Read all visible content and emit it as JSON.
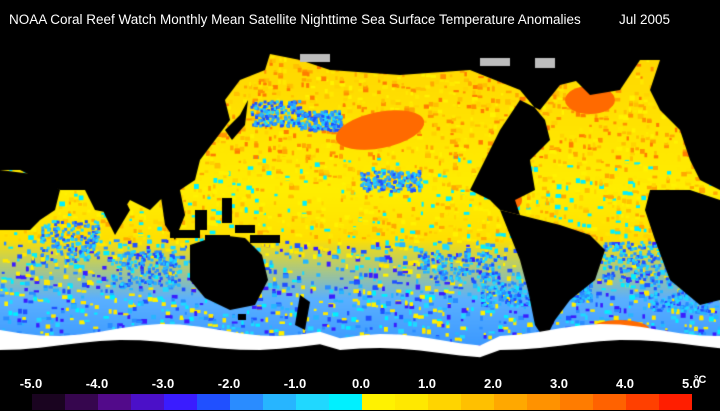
{
  "header": {
    "title": "NOAA Coral Reef Watch Monthly Mean Satellite Nighttime Sea Surface Temperature Anomalies",
    "date": "Jul 2005"
  },
  "legend": {
    "unit": "°C",
    "labels": [
      "-5.0",
      "-4.0",
      "-3.0",
      "-2.0",
      "-1.0",
      "0.0",
      "1.0",
      "2.0",
      "3.0",
      "4.0",
      "5.0"
    ],
    "colors": [
      "#1a0420",
      "#36064e",
      "#520a8a",
      "#4b10c8",
      "#3a1cff",
      "#2050ff",
      "#2a8cff",
      "#27b5ff",
      "#20d8ff",
      "#00f0ff",
      "#fff200",
      "#ffe800",
      "#ffd400",
      "#ffc000",
      "#ffa800",
      "#ff9200",
      "#ff7c00",
      "#ff6200",
      "#ff4000",
      "#ff1e00"
    ]
  },
  "map_colors": {
    "land": "#000000",
    "ice": "#ffffff",
    "ocean_warm": "#ffd400",
    "ocean_cool": "#2a8cff",
    "ocean_neutral": "#ffee00",
    "hot_spot": "#ff6a00"
  }
}
